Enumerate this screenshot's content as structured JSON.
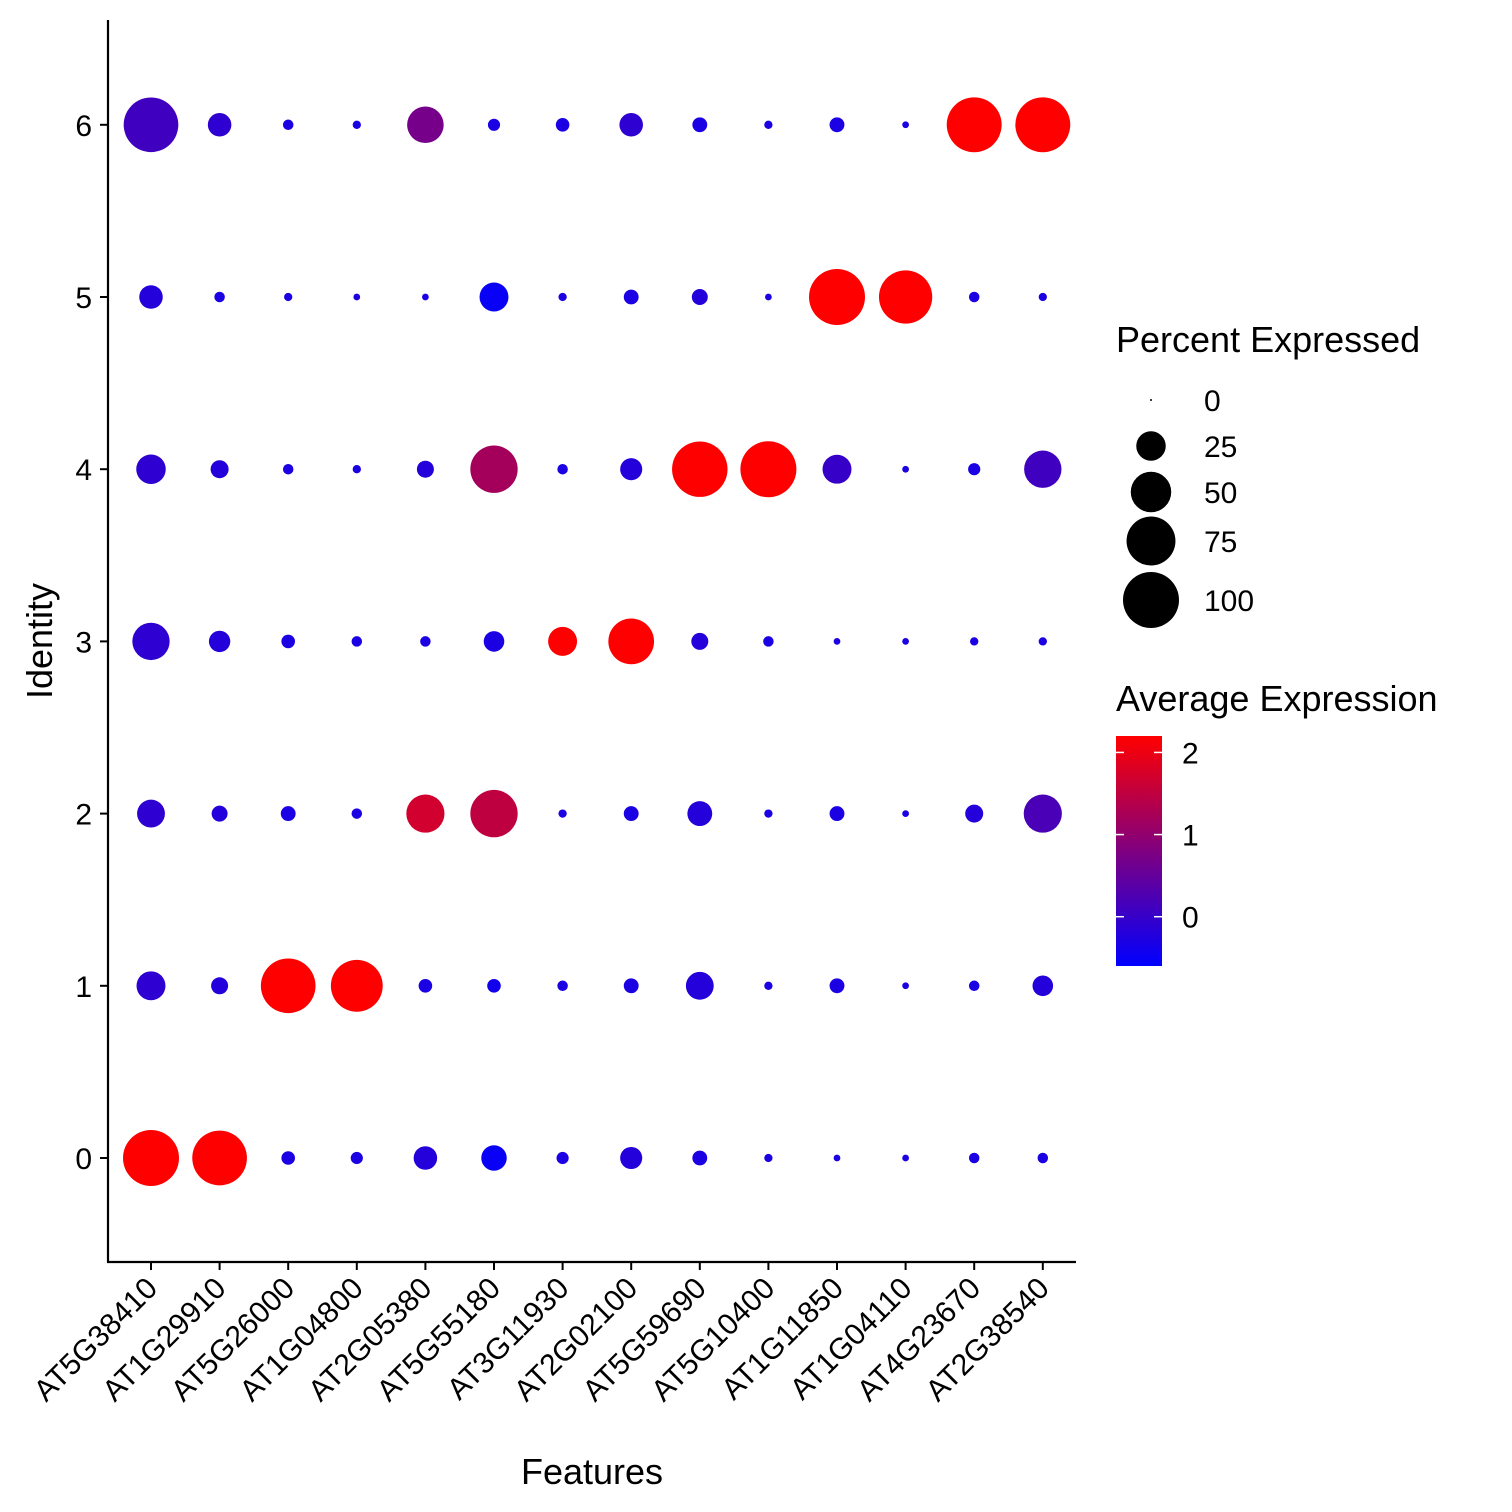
{
  "chart_data": {
    "type": "dotplot",
    "xlabel": "Features",
    "ylabel": "Identity",
    "features": [
      "AT5G38410",
      "AT1G29910",
      "AT5G26000",
      "AT1G04800",
      "AT2G05380",
      "AT5G55180",
      "AT3G11930",
      "AT2G02100",
      "AT5G59690",
      "AT5G10400",
      "AT1G11850",
      "AT1G04110",
      "AT4G23670",
      "AT2G38540"
    ],
    "identities": [
      "0",
      "1",
      "2",
      "3",
      "4",
      "5",
      "6"
    ],
    "size_legend": {
      "title": "Percent Expressed",
      "breaks": [
        0,
        25,
        50,
        75,
        100
      ],
      "labels": [
        "0",
        "25",
        "50",
        "75",
        "100"
      ]
    },
    "color_legend": {
      "title": "Average Expression",
      "breaks": [
        0,
        1,
        2
      ],
      "labels": [
        "0",
        "1",
        "2"
      ],
      "range": [
        -0.6,
        2.2
      ],
      "low_color": "#0000ff",
      "high_color": "#ff0000"
    },
    "points": [
      [
        {
          "pct": 100,
          "avg": 2.2
        },
        {
          "pct": 95,
          "avg": 2.2
        },
        {
          "pct": 4,
          "avg": -0.3
        },
        {
          "pct": 3,
          "avg": -0.3
        },
        {
          "pct": 15,
          "avg": -0.2
        },
        {
          "pct": 18,
          "avg": -0.5
        },
        {
          "pct": 3,
          "avg": -0.3
        },
        {
          "pct": 13,
          "avg": -0.2
        },
        {
          "pct": 5,
          "avg": -0.3
        },
        {
          "pct": 1,
          "avg": -0.3
        },
        {
          "pct": 0.5,
          "avg": -0.3
        },
        {
          "pct": 0.5,
          "avg": -0.3
        },
        {
          "pct": 2,
          "avg": -0.3
        },
        {
          "pct": 2,
          "avg": -0.3
        }
      ],
      [
        {
          "pct": 24,
          "avg": -0.1
        },
        {
          "pct": 7,
          "avg": -0.2
        },
        {
          "pct": 95,
          "avg": 2.2
        },
        {
          "pct": 85,
          "avg": 2.2
        },
        {
          "pct": 4,
          "avg": -0.3
        },
        {
          "pct": 4,
          "avg": -0.4
        },
        {
          "pct": 2,
          "avg": -0.3
        },
        {
          "pct": 5,
          "avg": -0.3
        },
        {
          "pct": 22,
          "avg": -0.2
        },
        {
          "pct": 1,
          "avg": -0.3
        },
        {
          "pct": 5,
          "avg": -0.3
        },
        {
          "pct": 0.5,
          "avg": -0.3
        },
        {
          "pct": 2,
          "avg": -0.3
        },
        {
          "pct": 11,
          "avg": -0.2
        }
      ],
      [
        {
          "pct": 22,
          "avg": -0.1
        },
        {
          "pct": 6,
          "avg": -0.2
        },
        {
          "pct": 5,
          "avg": -0.3
        },
        {
          "pct": 2,
          "avg": -0.3
        },
        {
          "pct": 44,
          "avg": 1.7
        },
        {
          "pct": 70,
          "avg": 1.5
        },
        {
          "pct": 1,
          "avg": -0.3
        },
        {
          "pct": 5,
          "avg": -0.3
        },
        {
          "pct": 17,
          "avg": -0.2
        },
        {
          "pct": 1,
          "avg": -0.3
        },
        {
          "pct": 5,
          "avg": -0.3
        },
        {
          "pct": 0.5,
          "avg": -0.3
        },
        {
          "pct": 8,
          "avg": -0.2
        },
        {
          "pct": 44,
          "avg": 0.2
        }
      ],
      [
        {
          "pct": 42,
          "avg": -0.1
        },
        {
          "pct": 12,
          "avg": -0.2
        },
        {
          "pct": 4,
          "avg": -0.3
        },
        {
          "pct": 2,
          "avg": -0.3
        },
        {
          "pct": 2,
          "avg": -0.3
        },
        {
          "pct": 11,
          "avg": -0.3
        },
        {
          "pct": 24,
          "avg": 2.2
        },
        {
          "pct": 65,
          "avg": 2.2
        },
        {
          "pct": 7,
          "avg": -0.2
        },
        {
          "pct": 2,
          "avg": -0.3
        },
        {
          "pct": 0.5,
          "avg": -0.3
        },
        {
          "pct": 0.5,
          "avg": -0.3
        },
        {
          "pct": 1,
          "avg": -0.3
        },
        {
          "pct": 1,
          "avg": -0.3
        }
      ],
      [
        {
          "pct": 25,
          "avg": -0.1
        },
        {
          "pct": 8,
          "avg": -0.2
        },
        {
          "pct": 2,
          "avg": -0.3
        },
        {
          "pct": 1,
          "avg": -0.3
        },
        {
          "pct": 7,
          "avg": -0.2
        },
        {
          "pct": 70,
          "avg": 1.2
        },
        {
          "pct": 2,
          "avg": -0.3
        },
        {
          "pct": 13,
          "avg": -0.2
        },
        {
          "pct": 98,
          "avg": 2.2
        },
        {
          "pct": 100,
          "avg": 2.2
        },
        {
          "pct": 24,
          "avg": 0.0
        },
        {
          "pct": 0.5,
          "avg": -0.3
        },
        {
          "pct": 3,
          "avg": -0.3
        },
        {
          "pct": 42,
          "avg": 0.1
        }
      ],
      [
        {
          "pct": 15,
          "avg": -0.2
        },
        {
          "pct": 2,
          "avg": -0.3
        },
        {
          "pct": 1,
          "avg": -0.3
        },
        {
          "pct": 0.5,
          "avg": -0.3
        },
        {
          "pct": 0.5,
          "avg": -0.3
        },
        {
          "pct": 24,
          "avg": -0.5
        },
        {
          "pct": 1,
          "avg": -0.3
        },
        {
          "pct": 5,
          "avg": -0.3
        },
        {
          "pct": 6,
          "avg": -0.2
        },
        {
          "pct": 0.5,
          "avg": -0.3
        },
        {
          "pct": 100,
          "avg": 2.2
        },
        {
          "pct": 90,
          "avg": 2.2
        },
        {
          "pct": 2,
          "avg": -0.3
        },
        {
          "pct": 1,
          "avg": -0.3
        }
      ],
      [
        {
          "pct": 95,
          "avg": 0.1
        },
        {
          "pct": 15,
          "avg": -0.1
        },
        {
          "pct": 2,
          "avg": -0.3
        },
        {
          "pct": 1,
          "avg": -0.3
        },
        {
          "pct": 40,
          "avg": 0.7
        },
        {
          "pct": 3,
          "avg": -0.3
        },
        {
          "pct": 4,
          "avg": -0.3
        },
        {
          "pct": 15,
          "avg": -0.1
        },
        {
          "pct": 5,
          "avg": -0.3
        },
        {
          "pct": 1,
          "avg": -0.3
        },
        {
          "pct": 5,
          "avg": -0.3
        },
        {
          "pct": 0.5,
          "avg": -0.3
        },
        {
          "pct": 96,
          "avg": 2.2
        },
        {
          "pct": 96,
          "avg": 2.2
        }
      ]
    ]
  }
}
